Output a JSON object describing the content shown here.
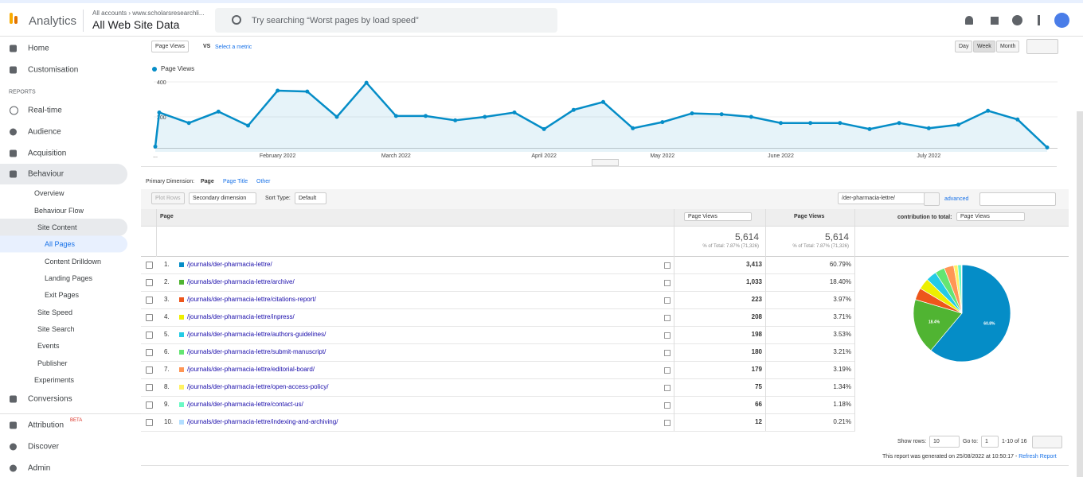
{
  "header": {
    "product": "Analytics",
    "account_path": "All accounts › www.scholarsresearchli...",
    "property": "All Web Site Data",
    "search_placeholder": "Try searching “Worst pages by load speed”"
  },
  "sidebar": {
    "items": [
      "Home",
      "Customisation",
      "REPORTS",
      "Real-time",
      "Audience",
      "Acquisition",
      "Behaviour",
      "Overview",
      "Behaviour Flow",
      "Site Content",
      "All Pages",
      "Content Drilldown",
      "Landing Pages",
      "Exit Pages",
      "Site Speed",
      "Site Search",
      "Events",
      "Publisher",
      "Experiments",
      "Conversions",
      "Attribution",
      "Discover",
      "Admin"
    ],
    "badge": "BETA"
  },
  "controls": {
    "metric": "Page Views",
    "vs": "VS",
    "select_metric": "Select a metric",
    "granularity": [
      "Day",
      "Week",
      "Month"
    ]
  },
  "chart_data": [
    {
      "type": "line",
      "categories": [
        "...",
        null,
        null,
        null,
        null,
        "February 2022",
        null,
        null,
        null,
        "March 2022",
        null,
        null,
        null,
        null,
        "April 2022",
        null,
        null,
        null,
        "May 2022",
        null,
        null,
        null,
        "June 2022",
        null,
        null,
        null,
        null,
        "July 2022",
        null,
        null,
        null,
        null
      ],
      "series": [
        {
          "name": "Page Views",
          "color": "#058dc7",
          "values": [
            30,
            225,
            165,
            230,
            150,
            350,
            345,
            200,
            395,
            205,
            205,
            180,
            200,
            225,
            130,
            240,
            285,
            135,
            170,
            220,
            215,
            200,
            165,
            165,
            165,
            130,
            165,
            135,
            155,
            235,
            185,
            25
          ]
        }
      ],
      "ylim": [
        0,
        420
      ],
      "yticks": [
        200,
        400
      ],
      "grid": true
    },
    {
      "type": "pie",
      "values": [
        60.79,
        18.4,
        3.97,
        3.71,
        3.53,
        3.21,
        3.19,
        1.34,
        1.18,
        0.21
      ],
      "value_labels": [
        "60.8%",
        "18.4%",
        null,
        null,
        null,
        null,
        null,
        null,
        null,
        null
      ],
      "colors": [
        "#058dc7",
        "#50b432",
        "#ed561b",
        "#edef00",
        "#24cbe5",
        "#64e572",
        "#ff9655",
        "#fff263",
        "#6af9c4",
        "#b2deff"
      ]
    }
  ],
  "dimensions": {
    "label": "Primary Dimension:",
    "options": [
      "Page",
      "Page Title",
      "Other"
    ]
  },
  "toolbar": {
    "plot_rows": "Plot Rows",
    "secondary": "Secondary dimension",
    "sort_label": "Sort Type:",
    "sort_value": "Default",
    "filter": "/der-pharmacia-lettre/",
    "advanced": "advanced"
  },
  "table": {
    "columns": [
      "Page",
      "Page Views",
      "Page Views"
    ],
    "contribution_label": "contribution to total:",
    "contribution_metric": "Page Views",
    "totals": [
      {
        "value": "5,614",
        "note": "% of Total: 7.87% (71,326)"
      },
      {
        "value": "5,614",
        "note": "% of Total: 7.87% (71,326)"
      }
    ],
    "rows": [
      [
        "1.",
        "/journals/der-pharmacia-lettre/",
        "3,413",
        "60.79%"
      ],
      [
        "2.",
        "/journals/der-pharmacia-lettre/archive/",
        "1,033",
        "18.40%"
      ],
      [
        "3.",
        "/journals/der-pharmacia-lettre/citations-report/",
        "223",
        "3.97%"
      ],
      [
        "4.",
        "/journals/der-pharmacia-lettre/inpress/",
        "208",
        "3.71%"
      ],
      [
        "5.",
        "/journals/der-pharmacia-lettre/authors-guidelines/",
        "198",
        "3.53%"
      ],
      [
        "6.",
        "/journals/der-pharmacia-lettre/submit-manuscript/",
        "180",
        "3.21%"
      ],
      [
        "7.",
        "/journals/der-pharmacia-lettre/editorial-board/",
        "179",
        "3.19%"
      ],
      [
        "8.",
        "/journals/der-pharmacia-lettre/open-access-policy/",
        "75",
        "1.34%"
      ],
      [
        "9.",
        "/journals/der-pharmacia-lettre/contact-us/",
        "66",
        "1.18%"
      ],
      [
        "10.",
        "/journals/der-pharmacia-lettre/indexing-and-archiving/",
        "12",
        "0.21%"
      ]
    ]
  },
  "footer": {
    "show_rows": "Show rows:",
    "rows_value": "10",
    "goto": "Go to:",
    "goto_value": "1",
    "range": "1-10 of 16",
    "generated": "This report was generated on 25/08/2022 at 10:50:17 - ",
    "refresh": "Refresh Report"
  }
}
